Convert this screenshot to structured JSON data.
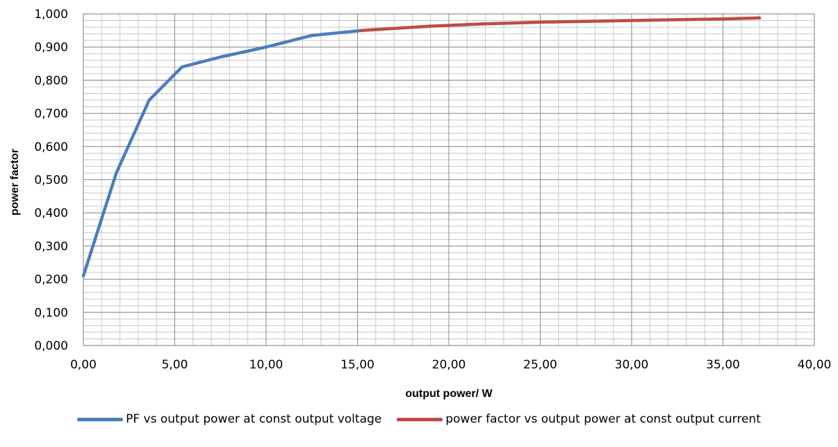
{
  "chart_data": {
    "type": "line",
    "title": "",
    "xlabel": "output power/ W",
    "ylabel": "power factor",
    "xlim": [
      0,
      40
    ],
    "ylim": [
      0,
      1
    ],
    "x_ticks": [
      "0,00",
      "5,00",
      "10,00",
      "15,00",
      "20,00",
      "25,00",
      "30,00",
      "35,00",
      "40,00"
    ],
    "y_ticks": [
      "0,000",
      "0,100",
      "0,200",
      "0,300",
      "0,400",
      "0,500",
      "0,600",
      "0,700",
      "0,800",
      "0,900",
      "1,000"
    ],
    "grid": true,
    "legend_position": "bottom",
    "series": [
      {
        "name": "PF vs output power at const output voltage",
        "color": "#4a7ebb",
        "points": [
          [
            0.0,
            0.21
          ],
          [
            1.8,
            0.52
          ],
          [
            3.6,
            0.74
          ],
          [
            5.4,
            0.84
          ],
          [
            7.5,
            0.87
          ],
          [
            10.0,
            0.9
          ],
          [
            12.5,
            0.935
          ],
          [
            15.2,
            0.95
          ]
        ]
      },
      {
        "name": "power factor vs output power at const output current",
        "color": "#be4b48",
        "points": [
          [
            15.2,
            0.95
          ],
          [
            19.0,
            0.963
          ],
          [
            22.0,
            0.97
          ],
          [
            25.0,
            0.975
          ],
          [
            30.0,
            0.98
          ],
          [
            35.0,
            0.985
          ],
          [
            37.0,
            0.988
          ]
        ]
      }
    ]
  }
}
